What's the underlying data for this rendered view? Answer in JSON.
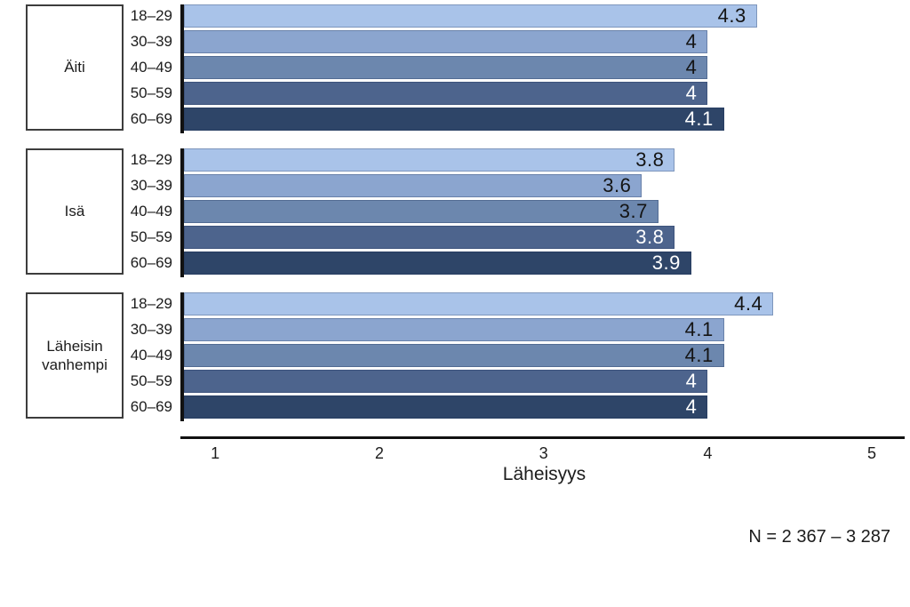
{
  "chart_data": {
    "type": "bar",
    "orientation": "horizontal",
    "xlabel": "Läheisyys",
    "x_ticks": [
      1,
      2,
      3,
      4,
      5
    ],
    "x_domain_displayed": [
      0.81,
      5.2
    ],
    "grid": false,
    "legend": "none",
    "categories": [
      "18–29",
      "30–39",
      "40–49",
      "50–59",
      "60–69"
    ],
    "groups": [
      {
        "name": "Äiti",
        "values": [
          4.3,
          4,
          4,
          4,
          4.1
        ],
        "labels": [
          "4.3",
          "4",
          "4",
          "4",
          "4.1"
        ]
      },
      {
        "name": "Isä",
        "values": [
          3.8,
          3.6,
          3.7,
          3.8,
          3.9
        ],
        "labels": [
          "3.8",
          "3.6",
          "3.7",
          "3.8",
          "3.9"
        ]
      },
      {
        "name": "Läheisin vanhempi",
        "values": [
          4.4,
          4.1,
          4.1,
          4,
          4
        ],
        "labels": [
          "4.4",
          "4.1",
          "4.1",
          "4",
          "4"
        ]
      }
    ],
    "bar_colors": [
      "#a9c3e9",
      "#8ba5cf",
      "#6c87ae",
      "#4d648d",
      "#2e4568"
    ],
    "value_label_colors": [
      "#141414",
      "#141414",
      "#141414",
      "#ffffff",
      "#ffffff"
    ],
    "axis_color": "#111111",
    "note": "N = 2 367 – 3 287"
  }
}
